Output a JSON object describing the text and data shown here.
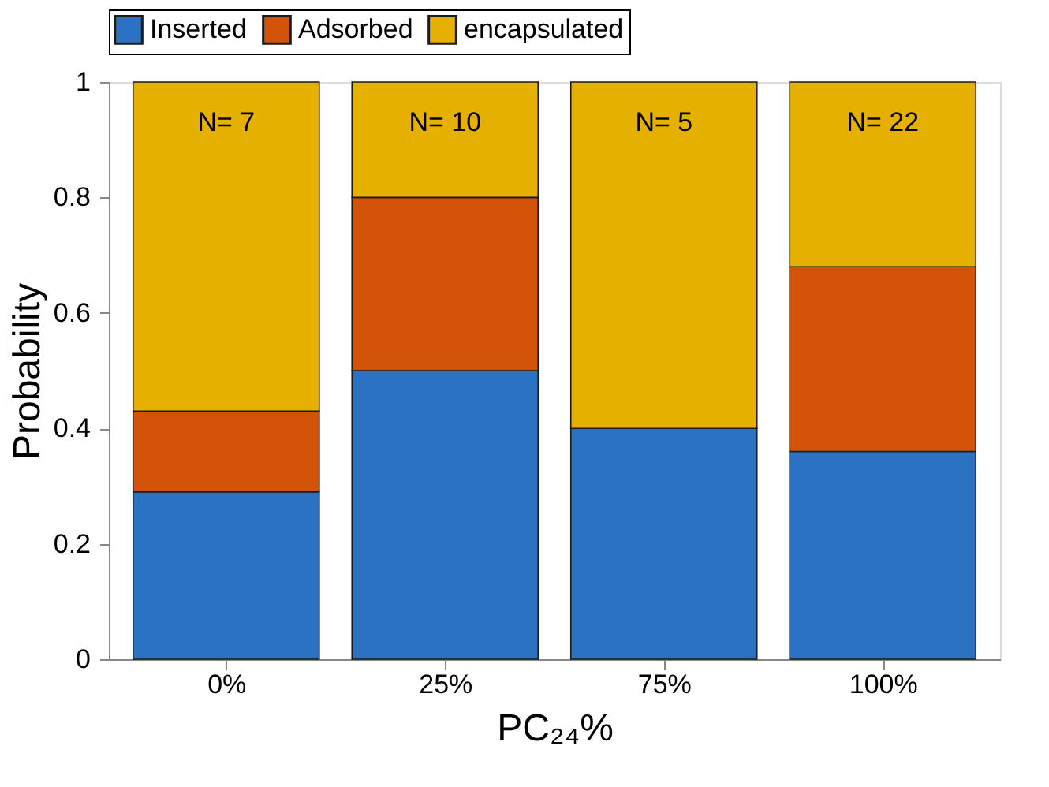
{
  "chart_data": {
    "type": "bar",
    "stacked": true,
    "xlabel": "PC₂₄%",
    "ylabel": "Probability",
    "categories": [
      "0%",
      "25%",
      "75%",
      "100%"
    ],
    "series": [
      {
        "name": "Inserted",
        "color": "#2b73c2",
        "values": [
          0.29,
          0.5,
          0.4,
          0.36
        ]
      },
      {
        "name": "Adsorbed",
        "color": "#d35408",
        "values": [
          0.14,
          0.3,
          0.0,
          0.32
        ]
      },
      {
        "name": "encapsulated",
        "color": "#e6b000",
        "values": [
          0.57,
          0.2,
          0.6,
          0.32
        ]
      }
    ],
    "ylim": [
      0,
      1
    ],
    "yticks": [
      0,
      0.2,
      0.4,
      0.6,
      0.8,
      1
    ],
    "annotations": [
      "N= 7",
      "N= 10",
      "N= 5",
      "N= 22"
    ],
    "legend": "top",
    "grid": false
  }
}
